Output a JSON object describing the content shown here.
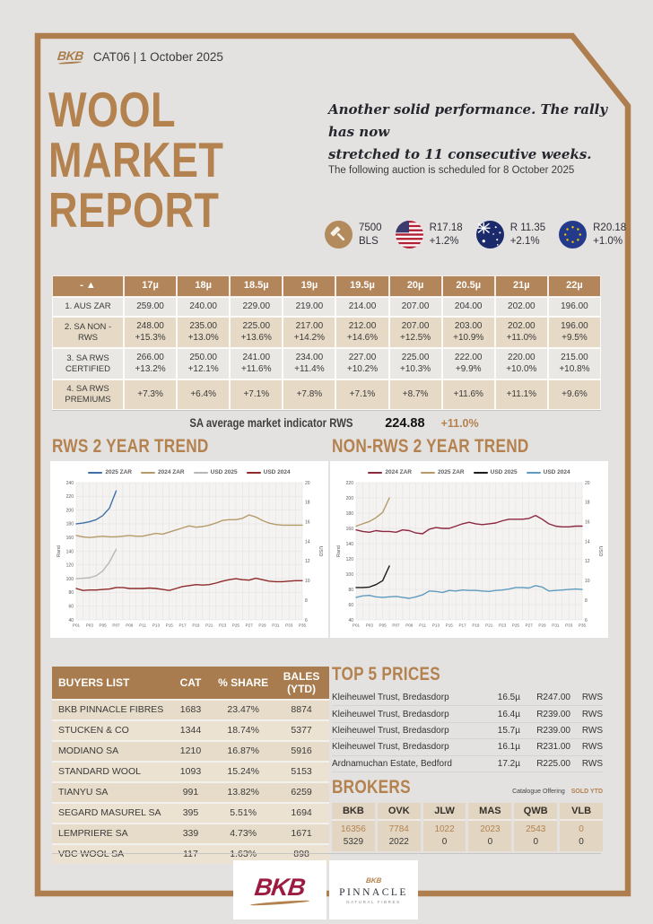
{
  "accent": {
    "bronze": "#b3824f",
    "frame": "#ae7e4e",
    "table_header": "#b2855a",
    "crimson": "#9c1c41"
  },
  "header": {
    "brand": "BKB",
    "catalog": "CAT06 | 1 October 2025"
  },
  "title": {
    "line1": "WOOL",
    "line2": "MARKET",
    "line3": "REPORT"
  },
  "intro": {
    "quote_line1": "Another solid performance. The rally has now",
    "quote_line2": "stretched to 11 consecutive weeks.",
    "next_auction": "The following auction is scheduled for 8 October 2025"
  },
  "stats": [
    {
      "icon": "gavel-icon",
      "value": "7500",
      "sub": "BLS"
    },
    {
      "icon": "us-flag-icon",
      "value": "R17.18",
      "sub": "+1.2%"
    },
    {
      "icon": "australia-flag-icon",
      "value": "R 11.35",
      "sub": "+2.1%"
    },
    {
      "icon": "eu-flag-icon",
      "value": "R20.18",
      "sub": "+1.0%"
    }
  ],
  "micron_table": {
    "sort_label": "-  ▲",
    "columns": [
      "17µ",
      "18µ",
      "18.5µ",
      "19µ",
      "19.5µ",
      "20µ",
      "20.5µ",
      "21µ",
      "22µ"
    ],
    "rows": [
      {
        "label": "1. AUS ZAR",
        "values": [
          "259.00",
          "240.00",
          "229.00",
          "219.00",
          "214.00",
          "207.00",
          "204.00",
          "202.00",
          "196.00"
        ],
        "pcts": []
      },
      {
        "label": "2. SA NON - RWS",
        "values": [
          "248.00",
          "235.00",
          "225.00",
          "217.00",
          "212.00",
          "207.00",
          "203.00",
          "202.00",
          "196.00"
        ],
        "pcts": [
          "+15.3%",
          "+13.0%",
          "+13.6%",
          "+14.2%",
          "+14.6%",
          "+12.5%",
          "+10.9%",
          "+11.0%",
          "+9.5%"
        ]
      },
      {
        "label": "3. SA RWS CERTIFIED",
        "values": [
          "266.00",
          "250.00",
          "241.00",
          "234.00",
          "227.00",
          "225.00",
          "222.00",
          "220.00",
          "215.00"
        ],
        "pcts": [
          "+13.2%",
          "+12.1%",
          "+11.6%",
          "+11.4%",
          "+10.2%",
          "+10.3%",
          "+9.9%",
          "+10.0%",
          "+10.8%"
        ]
      },
      {
        "label": "4. SA RWS PREMIUMS",
        "values": [],
        "pcts": [
          "+7.3%",
          "+6.4%",
          "+7.1%",
          "+7.8%",
          "+7.1%",
          "+8.7%",
          "+11.6%",
          "+11.1%",
          "+9.6%"
        ]
      }
    ]
  },
  "indicator": {
    "label": "SA average market indicator RWS",
    "value": "224.88",
    "change": "+11.0%"
  },
  "chart_data": [
    {
      "type": "line",
      "title": "RWS 2 YEAR TREND",
      "x_count": 35,
      "x_labels": [
        "P01",
        "P03",
        "P05",
        "P07",
        "P09",
        "P11",
        "P13",
        "P15",
        "P17",
        "P19",
        "P21",
        "P23",
        "P25",
        "P27",
        "P29",
        "P31",
        "P33",
        "P35"
      ],
      "left_axis": {
        "label": "Rand",
        "min": 40,
        "max": 240,
        "step": 20
      },
      "right_axis": {
        "label": "USD",
        "min": 6,
        "max": 20,
        "step": 2
      },
      "grid": true,
      "legend_position": "top",
      "series": [
        {
          "name": "2025 ZAR",
          "color": "#3f6fa8",
          "axis": "left",
          "values": [
            180,
            181,
            183,
            186,
            192,
            203,
            228
          ]
        },
        {
          "name": "2024 ZAR",
          "color": "#b59a6a",
          "axis": "left",
          "values": [
            163,
            161,
            160,
            161,
            162,
            161,
            161,
            162,
            163,
            162,
            162,
            164,
            166,
            165,
            168,
            171,
            174,
            177,
            175,
            176,
            178,
            181,
            185,
            186,
            186,
            188,
            193,
            190,
            185,
            181,
            179,
            178,
            178,
            178,
            178
          ]
        },
        {
          "name": "USD 2025",
          "color": "#b9b7b5",
          "axis": "right",
          "values": [
            10.2,
            10.25,
            10.3,
            10.5,
            11.0,
            11.9,
            13.2
          ]
        },
        {
          "name": "USD 2024",
          "color": "#8e2a2a",
          "axis": "right",
          "values": [
            9.2,
            9.0,
            9.05,
            9.05,
            9.1,
            9.15,
            9.3,
            9.3,
            9.2,
            9.2,
            9.2,
            9.25,
            9.2,
            9.1,
            9.0,
            9.2,
            9.4,
            9.5,
            9.6,
            9.55,
            9.6,
            9.75,
            9.95,
            10.1,
            10.2,
            10.1,
            10.05,
            10.25,
            10.1,
            9.95,
            9.9,
            9.9,
            9.95,
            10.0,
            10.0
          ]
        }
      ]
    },
    {
      "type": "line",
      "title": "NON-RWS 2 YEAR TREND",
      "x_count": 35,
      "x_labels": [
        "P01",
        "P03",
        "P05",
        "P07",
        "P09",
        "P11",
        "P13",
        "P15",
        "P17",
        "P19",
        "P21",
        "P23",
        "P25",
        "P27",
        "P29",
        "P31",
        "P33",
        "P35"
      ],
      "left_axis": {
        "label": "Rand",
        "min": 40,
        "max": 220,
        "step": 20
      },
      "right_axis": {
        "label": "USD",
        "min": 6,
        "max": 20,
        "step": 2
      },
      "grid": true,
      "legend_position": "top",
      "series": [
        {
          "name": "2024 ZAR",
          "color": "#8c2740",
          "axis": "left",
          "values": [
            158,
            156,
            155,
            157,
            156,
            156,
            155,
            158,
            157,
            154,
            153,
            159,
            161,
            160,
            160,
            163,
            166,
            168,
            166,
            165,
            166,
            167,
            170,
            172,
            172,
            172,
            173,
            177,
            172,
            166,
            163,
            162,
            162,
            163,
            163
          ]
        },
        {
          "name": "2025 ZAR",
          "color": "#b59a6a",
          "axis": "left",
          "values": [
            163,
            166,
            169,
            174,
            181,
            200
          ]
        },
        {
          "name": "USD 2025",
          "color": "#1a1a1a",
          "axis": "right",
          "values": [
            9.3,
            9.3,
            9.35,
            9.6,
            10.0,
            11.5
          ]
        },
        {
          "name": "USD 2024",
          "color": "#5f9bbf",
          "axis": "right",
          "values": [
            8.3,
            8.45,
            8.5,
            8.35,
            8.3,
            8.35,
            8.4,
            8.3,
            8.2,
            8.35,
            8.55,
            8.95,
            8.9,
            8.8,
            9.0,
            8.95,
            9.05,
            9.0,
            9.0,
            8.95,
            8.9,
            9.0,
            9.05,
            9.15,
            9.3,
            9.3,
            9.25,
            9.5,
            9.35,
            8.95,
            9.0,
            9.05,
            9.1,
            9.15,
            9.1
          ]
        }
      ]
    }
  ],
  "buyers": {
    "headers": [
      "BUYERS LIST",
      "CAT",
      "% SHARE",
      "BALES (YTD)"
    ],
    "rows": [
      [
        "BKB PINNACLE FIBRES",
        "1683",
        "23.47%",
        "8874"
      ],
      [
        "STUCKEN & CO",
        "1344",
        "18.74%",
        "5377"
      ],
      [
        "MODIANO SA",
        "1210",
        "16.87%",
        "5916"
      ],
      [
        "STANDARD WOOL",
        "1093",
        "15.24%",
        "5153"
      ],
      [
        "TIANYU SA",
        "991",
        "13.82%",
        "6259"
      ],
      [
        "SEGARD MASUREL SA",
        "395",
        "5.51%",
        "1694"
      ],
      [
        "LEMPRIERE SA",
        "339",
        "4.73%",
        "1671"
      ],
      [
        "VBC WOOL SA",
        "117",
        "1.63%",
        "898"
      ]
    ]
  },
  "top5": {
    "title": "TOP 5 PRICES",
    "rows": [
      {
        "name": "Kleiheuwel Trust, Bredasdorp",
        "micron": "16.5µ",
        "price": "R247.00",
        "cert": "RWS"
      },
      {
        "name": "Kleiheuwel Trust, Bredasdorp",
        "micron": "16.4µ",
        "price": "R239.00",
        "cert": "RWS"
      },
      {
        "name": "Kleiheuwel Trust, Bredasdorp",
        "micron": "15.7µ",
        "price": "R239.00",
        "cert": "RWS"
      },
      {
        "name": "Kleiheuwel Trust, Bredasdorp",
        "micron": "16.1µ",
        "price": "R231.00",
        "cert": "RWS"
      },
      {
        "name": "Ardnamuchan Estate, Bedford",
        "micron": "17.2µ",
        "price": "R225.00",
        "cert": "RWS"
      }
    ]
  },
  "brokers": {
    "title": "BROKERS",
    "legend_catalogue": "Catalogue Offering",
    "legend_sold": "SOLD YTD",
    "columns": [
      "BKB",
      "OVK",
      "JLW",
      "MAS",
      "QWB",
      "VLB"
    ],
    "sold_ytd_values": [
      "16356",
      "7784",
      "1022",
      "2023",
      "2543",
      "0"
    ],
    "catalogue_values": [
      "5329",
      "2022",
      "0",
      "0",
      "0",
      "0"
    ]
  },
  "footer": {
    "bkb_label": "BKB",
    "pinnacle_mark": "BKB",
    "pinnacle_name": "PINNACLE",
    "pinnacle_sub": "NATURAL FIBRES"
  }
}
